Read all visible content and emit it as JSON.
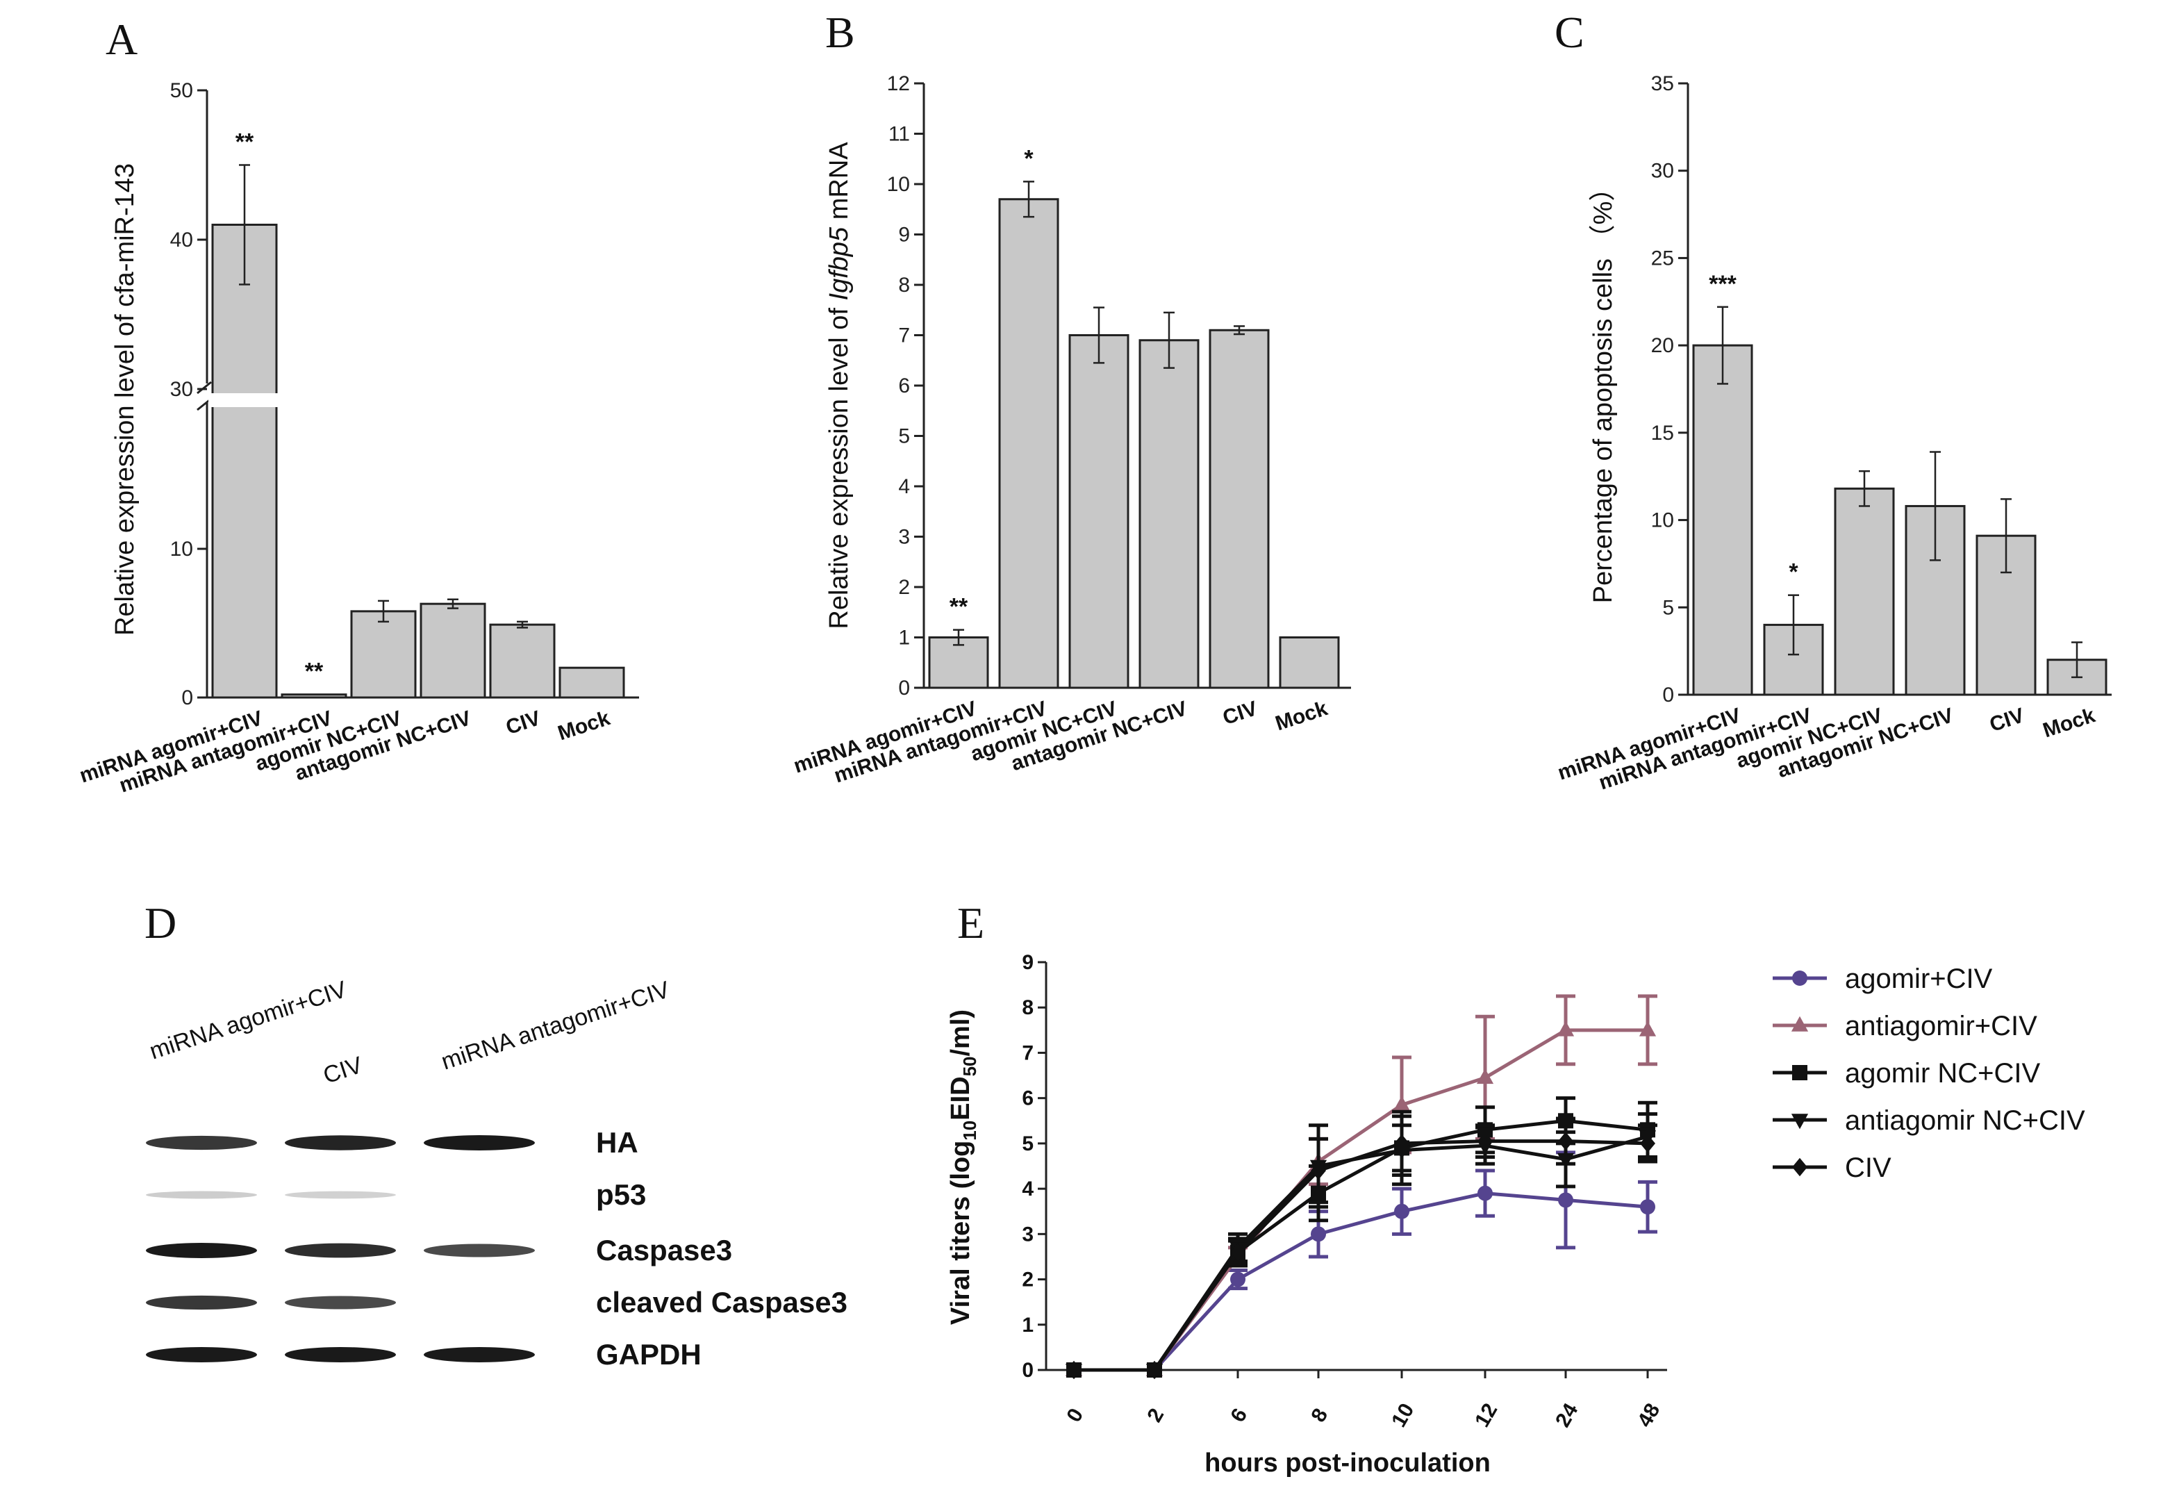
{
  "panels": {
    "A": "A",
    "B": "B",
    "C": "C",
    "D": "D",
    "E": "E"
  },
  "chart_data": [
    {
      "id": "A",
      "type": "bar",
      "ylabel": "Relative expression level of cfa-miR-143",
      "categories": [
        "miRNA agomir+CIV",
        "miRNA antagomir+CIV",
        "agomir NC+CIV",
        "antagomir NC+CIV",
        "CIV",
        "Mock"
      ],
      "values": [
        41,
        0.2,
        5.8,
        6.3,
        4.9,
        2
      ],
      "errors": [
        4,
        0,
        0.7,
        0.3,
        0.2,
        0
      ],
      "significance": [
        "**",
        "**",
        "",
        "",
        "",
        ""
      ],
      "y_ticks_lower": [
        "0",
        "10"
      ],
      "y_ticks_upper": [
        "30",
        "40",
        "50"
      ],
      "axis_break": [
        15,
        30
      ]
    },
    {
      "id": "B",
      "type": "bar",
      "ylabel_prefix": "Relative expression level of ",
      "ylabel_gene": "Igfbp5",
      "ylabel_suffix": " mRNA",
      "categories": [
        "miRNA agomir+CIV",
        "miRNA antagomir+CIV",
        "agomir NC+CIV",
        "antagomir NC+CIV",
        "CIV",
        "Mock"
      ],
      "values": [
        1,
        9.7,
        7,
        6.9,
        7.1,
        1
      ],
      "errors": [
        0.15,
        0.35,
        0.55,
        0.55,
        0.08,
        0
      ],
      "significance": [
        "**",
        "*",
        "",
        "",
        "",
        ""
      ],
      "ylim": [
        0,
        12
      ],
      "y_ticks": [
        "0",
        "1",
        "2",
        "3",
        "4",
        "5",
        "6",
        "7",
        "8",
        "9",
        "10",
        "11",
        "12"
      ]
    },
    {
      "id": "C",
      "type": "bar",
      "ylabel": "Percentage of apoptosis cells （%）",
      "categories": [
        "miRNA agomir+CIV",
        "miRNA antagomir+CIV",
        "agomir NC+CIV",
        "antagomir NC+CIV",
        "CIV",
        "Mock"
      ],
      "values": [
        20,
        4,
        11.8,
        10.8,
        9.1,
        2
      ],
      "errors": [
        2.2,
        1.7,
        1,
        3.1,
        2.1,
        1
      ],
      "significance": [
        "***",
        "*",
        "",
        "",
        "",
        ""
      ],
      "ylim": [
        0,
        35
      ],
      "y_ticks": [
        "0",
        "5",
        "10",
        "15",
        "20",
        "25",
        "30",
        "35"
      ]
    },
    {
      "id": "E",
      "type": "line",
      "xlabel": "hours post-inoculation",
      "ylabel": "Viral titers (log",
      "ylabel_sub": "10",
      "ylabel_mid": "EID",
      "ylabel_sub2": "50",
      "ylabel_end": "/ml)",
      "x": [
        "0",
        "2",
        "6",
        "8",
        "10",
        "12",
        "24",
        "48"
      ],
      "ylim": [
        0,
        9
      ],
      "y_ticks": [
        "0",
        "1",
        "2",
        "3",
        "4",
        "5",
        "6",
        "7",
        "8",
        "9"
      ],
      "series": [
        {
          "name": "agomir+CIV",
          "color": "#55448f",
          "marker": "circle",
          "values": [
            0,
            0,
            2,
            3,
            3.5,
            3.9,
            3.75,
            3.6
          ],
          "errors": [
            0,
            0,
            0.2,
            0.5,
            0.5,
            0.5,
            1.05,
            0.55
          ]
        },
        {
          "name": "antiagomir+CIV",
          "color": "#9b6475",
          "marker": "triangle",
          "values": [
            0,
            0,
            2.5,
            4.6,
            5.85,
            6.45,
            7.5,
            7.5
          ],
          "errors": [
            0,
            0,
            0.2,
            0.5,
            1.05,
            1.35,
            0.75,
            0.75
          ]
        },
        {
          "name": "agomir NC+CIV",
          "color": "#111111",
          "marker": "square",
          "values": [
            0,
            0,
            2.6,
            3.9,
            4.9,
            5.3,
            5.5,
            5.3
          ],
          "errors": [
            0,
            0,
            0.3,
            0.6,
            0.5,
            0.5,
            0.5,
            0.6
          ]
        },
        {
          "name": "antiagomir NC+CIV",
          "color": "#111111",
          "marker": "triangle-down",
          "values": [
            0,
            0,
            2.7,
            4.5,
            4.85,
            4.95,
            4.65,
            5.15
          ],
          "errors": [
            0,
            0,
            0.3,
            0.9,
            0.75,
            0.4,
            0.6,
            0.5
          ]
        },
        {
          "name": "CIV",
          "color": "#111111",
          "marker": "diamond",
          "values": [
            0,
            0,
            2.6,
            4.4,
            5,
            5.05,
            5.05,
            5
          ],
          "errors": [
            0,
            0,
            0.25,
            0.7,
            0.7,
            0.35,
            0.5,
            0.4
          ]
        }
      ]
    }
  ],
  "western_blot": {
    "lanes": [
      "miRNA agomir+CIV",
      "CIV",
      "miRNA antagomir+CIV"
    ],
    "proteins": [
      "HA",
      "p53",
      "Caspase3",
      "cleaved Caspase3",
      "GAPDH"
    ],
    "band_intensity": [
      [
        0.85,
        0.95,
        1.0
      ],
      [
        0.08,
        0.06,
        0.0
      ],
      [
        1.0,
        0.9,
        0.75
      ],
      [
        0.85,
        0.75,
        0.0
      ],
      [
        1.0,
        1.0,
        1.0
      ]
    ]
  }
}
